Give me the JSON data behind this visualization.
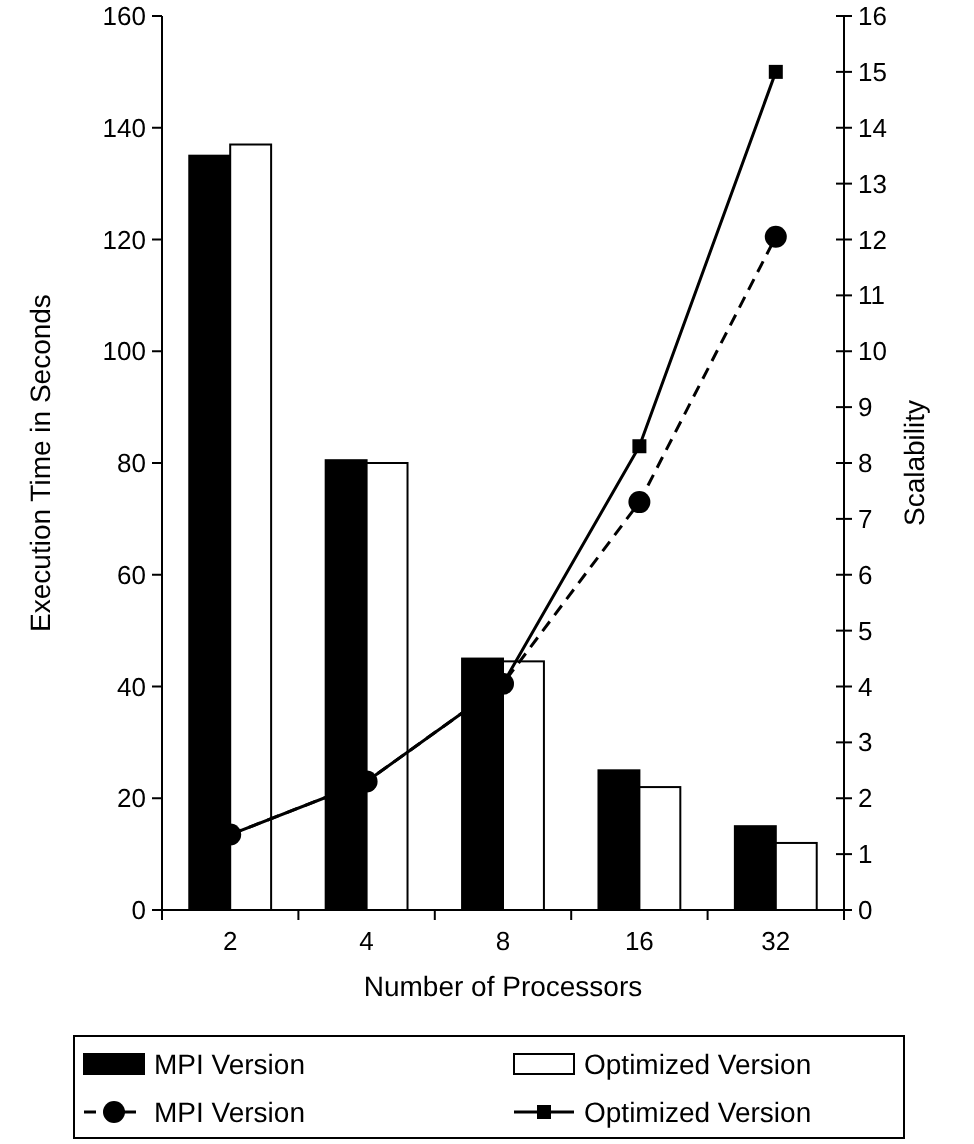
{
  "chart_data": {
    "type": "bar",
    "xlabel": "Number of Processors",
    "ylabel": "Execution Time in Seconds",
    "y2label": "Scalability",
    "categories": [
      "2",
      "4",
      "8",
      "16",
      "32"
    ],
    "series": [
      {
        "name": "MPI Version",
        "color": "#000000",
        "values": [
          135,
          80.5,
          45,
          25,
          15
        ]
      },
      {
        "name": "Optimized Version",
        "color": "#ffffff",
        "values": [
          137,
          80,
          44.5,
          22,
          12
        ]
      },
      {
        "name": "MPI Version",
        "type": "line",
        "axis": "y2",
        "color": "#000000",
        "marker": "circle",
        "line_style": "dashed",
        "values": [
          1.35,
          2.3,
          4.05,
          7.3,
          12.05
        ]
      },
      {
        "name": "Optimized Version",
        "type": "line",
        "axis": "y2",
        "color": "#000000",
        "marker": "square",
        "line_style": "solid",
        "values": [
          1.35,
          2.3,
          4.05,
          8.3,
          15
        ]
      }
    ],
    "ylim": [
      0,
      160
    ],
    "yticks": [
      0,
      20,
      40,
      60,
      80,
      100,
      120,
      140,
      160
    ],
    "y2lim": [
      0,
      16
    ],
    "y2ticks": [
      0,
      1,
      2,
      3,
      4,
      5,
      6,
      7,
      8,
      9,
      10,
      11,
      12,
      13,
      14,
      15,
      16
    ],
    "grid": false,
    "legend": "bottom"
  }
}
